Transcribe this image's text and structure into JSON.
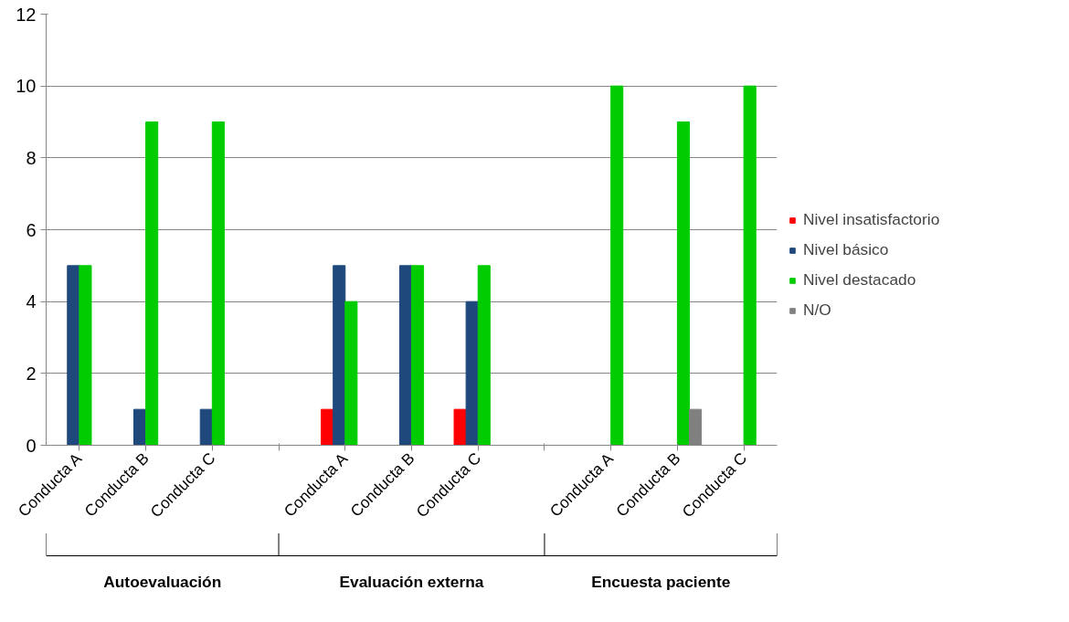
{
  "chart_data": {
    "type": "bar",
    "categories": [
      "Conducta A",
      "Conducta B",
      "Conducta C",
      null,
      "Conducta A",
      "Conducta B",
      "Conducta C",
      null,
      "Conducta A",
      "Conducta B",
      "Conducta C"
    ],
    "series": [
      {
        "name": "Nivel insatisfactorio",
        "color": "#ff0000",
        "values": [
          null,
          null,
          null,
          null,
          1,
          null,
          1,
          null,
          null,
          null,
          null
        ]
      },
      {
        "name": "Nivel básico",
        "color": "#1f497d",
        "values": [
          5,
          1,
          1,
          null,
          5,
          5,
          4,
          null,
          null,
          null,
          null
        ]
      },
      {
        "name": "Nivel destacado",
        "color": "#00cc00",
        "values": [
          5,
          9,
          9,
          null,
          4,
          5,
          5,
          null,
          10,
          9,
          10
        ]
      },
      {
        "name": "N/O",
        "color": "#808080",
        "values": [
          null,
          null,
          null,
          null,
          null,
          null,
          null,
          null,
          null,
          1,
          null
        ]
      }
    ],
    "ylim": [
      0,
      12
    ],
    "yticks": [
      0,
      2,
      4,
      6,
      8,
      10,
      12
    ],
    "grid": "y",
    "legend": "right",
    "annotations": [
      "Autoevaluación",
      "Evaluación externa",
      "Encuesta paciente"
    ]
  }
}
